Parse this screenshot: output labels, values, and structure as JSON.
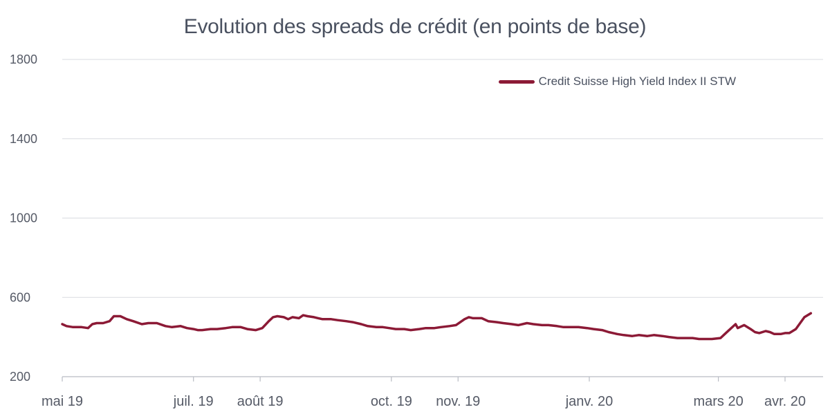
{
  "chart_data": {
    "type": "line",
    "title": "Evolution des spreads de crédit (en points de base)",
    "xlabel": "",
    "ylabel": "",
    "ylim": [
      200,
      1800
    ],
    "yticks": [
      200,
      600,
      1000,
      1400,
      1800
    ],
    "grid": true,
    "legend_position": "top-right",
    "line_color": "#8c1a36",
    "x_ticks": [
      "2019-05-01",
      "2019-07-01",
      "2019-08-01",
      "2019-10-01",
      "2019-11-01",
      "2020-01-01",
      "2020-03-01",
      "2020-04-01"
    ],
    "x_tick_labels": [
      "mai 19",
      "juil. 19",
      "août 19",
      "oct. 19",
      "nov. 19",
      "janv. 20",
      "mars 20",
      "avr. 20"
    ],
    "xlim": [
      "2019-05-01",
      "2020-04-30"
    ],
    "series": [
      {
        "name": "Credit Suisse High Yield Index II STW",
        "points": [
          [
            "2019-05-01",
            465
          ],
          [
            "2019-05-03",
            455
          ],
          [
            "2019-05-06",
            450
          ],
          [
            "2019-05-10",
            450
          ],
          [
            "2019-05-13",
            445
          ],
          [
            "2019-05-15",
            465
          ],
          [
            "2019-05-17",
            470
          ],
          [
            "2019-05-20",
            470
          ],
          [
            "2019-05-23",
            480
          ],
          [
            "2019-05-25",
            505
          ],
          [
            "2019-05-28",
            505
          ],
          [
            "2019-05-31",
            490
          ],
          [
            "2019-06-03",
            480
          ],
          [
            "2019-06-07",
            465
          ],
          [
            "2019-06-10",
            470
          ],
          [
            "2019-06-14",
            470
          ],
          [
            "2019-06-18",
            455
          ],
          [
            "2019-06-21",
            450
          ],
          [
            "2019-06-25",
            455
          ],
          [
            "2019-06-28",
            445
          ],
          [
            "2019-07-01",
            440
          ],
          [
            "2019-07-03",
            435
          ],
          [
            "2019-07-05",
            435
          ],
          [
            "2019-07-09",
            440
          ],
          [
            "2019-07-12",
            440
          ],
          [
            "2019-07-16",
            445
          ],
          [
            "2019-07-19",
            450
          ],
          [
            "2019-07-23",
            450
          ],
          [
            "2019-07-26",
            440
          ],
          [
            "2019-07-30",
            435
          ],
          [
            "2019-08-02",
            445
          ],
          [
            "2019-08-05",
            480
          ],
          [
            "2019-08-07",
            500
          ],
          [
            "2019-08-09",
            505
          ],
          [
            "2019-08-12",
            500
          ],
          [
            "2019-08-14",
            490
          ],
          [
            "2019-08-16",
            500
          ],
          [
            "2019-08-19",
            495
          ],
          [
            "2019-08-21",
            510
          ],
          [
            "2019-08-23",
            505
          ],
          [
            "2019-08-26",
            500
          ],
          [
            "2019-08-28",
            495
          ],
          [
            "2019-08-30",
            490
          ],
          [
            "2019-09-03",
            490
          ],
          [
            "2019-09-06",
            485
          ],
          [
            "2019-09-10",
            480
          ],
          [
            "2019-09-13",
            475
          ],
          [
            "2019-09-17",
            465
          ],
          [
            "2019-09-20",
            455
          ],
          [
            "2019-09-24",
            450
          ],
          [
            "2019-09-27",
            450
          ],
          [
            "2019-09-30",
            445
          ],
          [
            "2019-10-03",
            440
          ],
          [
            "2019-10-07",
            440
          ],
          [
            "2019-10-10",
            435
          ],
          [
            "2019-10-14",
            440
          ],
          [
            "2019-10-17",
            445
          ],
          [
            "2019-10-21",
            445
          ],
          [
            "2019-10-24",
            450
          ],
          [
            "2019-10-28",
            455
          ],
          [
            "2019-10-31",
            460
          ],
          [
            "2019-11-04",
            490
          ],
          [
            "2019-11-06",
            500
          ],
          [
            "2019-11-08",
            495
          ],
          [
            "2019-11-12",
            495
          ],
          [
            "2019-11-15",
            480
          ],
          [
            "2019-11-19",
            475
          ],
          [
            "2019-11-22",
            470
          ],
          [
            "2019-11-26",
            465
          ],
          [
            "2019-11-29",
            460
          ],
          [
            "2019-12-03",
            470
          ],
          [
            "2019-12-06",
            465
          ],
          [
            "2019-12-10",
            460
          ],
          [
            "2019-12-13",
            460
          ],
          [
            "2019-12-17",
            455
          ],
          [
            "2019-12-20",
            450
          ],
          [
            "2019-12-24",
            450
          ],
          [
            "2019-12-27",
            450
          ],
          [
            "2019-12-31",
            445
          ],
          [
            "2020-01-03",
            440
          ],
          [
            "2020-01-07",
            435
          ],
          [
            "2020-01-10",
            425
          ],
          [
            "2020-01-14",
            415
          ],
          [
            "2020-01-17",
            410
          ],
          [
            "2020-01-21",
            405
          ],
          [
            "2020-01-24",
            410
          ],
          [
            "2020-01-28",
            405
          ],
          [
            "2020-01-31",
            410
          ],
          [
            "2020-02-04",
            405
          ],
          [
            "2020-02-07",
            400
          ],
          [
            "2020-02-11",
            395
          ],
          [
            "2020-02-14",
            395
          ],
          [
            "2020-02-18",
            395
          ],
          [
            "2020-02-21",
            390
          ],
          [
            "2020-02-24",
            390
          ],
          [
            "2020-02-27",
            390
          ],
          [
            "2020-03-02",
            395
          ],
          [
            "2020-03-04",
            415
          ],
          [
            "2020-03-06",
            435
          ],
          [
            "2020-03-09",
            465
          ],
          [
            "2020-03-10",
            445
          ],
          [
            "2020-03-12",
            455
          ],
          [
            "2020-03-13",
            460
          ],
          [
            "2020-03-16",
            440
          ],
          [
            "2020-03-18",
            425
          ],
          [
            "2020-03-20",
            420
          ],
          [
            "2020-03-23",
            430
          ],
          [
            "2020-03-25",
            425
          ],
          [
            "2020-03-27",
            415
          ],
          [
            "2020-03-30",
            415
          ],
          [
            "2020-04-01",
            420
          ],
          [
            "2020-04-03",
            420
          ],
          [
            "2020-04-06",
            440
          ],
          [
            "2020-04-08",
            470
          ],
          [
            "2020-04-10",
            500
          ],
          [
            "2020-04-13",
            520
          ]
        ]
      }
    ]
  }
}
